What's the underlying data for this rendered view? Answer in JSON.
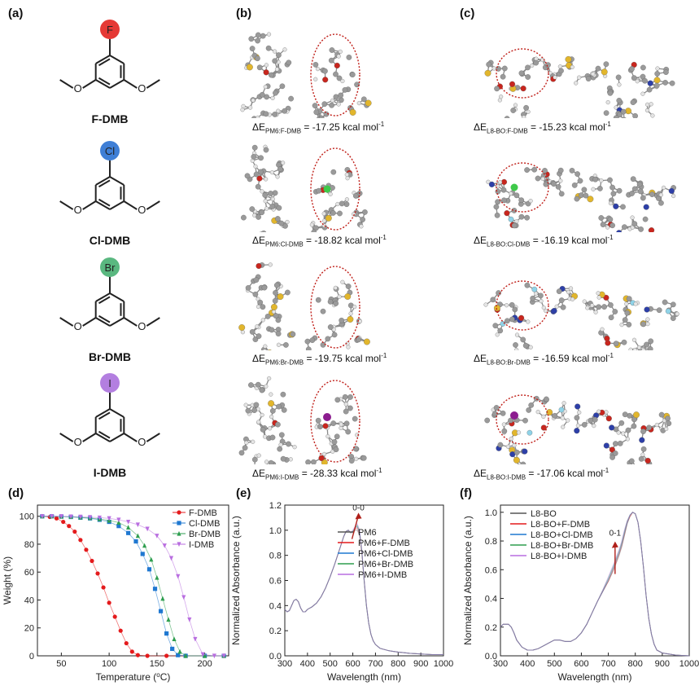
{
  "panel_labels": {
    "a": "(a)",
    "b": "(b)",
    "c": "(c)",
    "d": "(d)",
    "e": "(e)",
    "f": "(f)"
  },
  "molecules": [
    {
      "name": "F-DMB",
      "atom": "F",
      "color": "#e53935"
    },
    {
      "name": "Cl-DMB",
      "atom": "Cl",
      "color": "#3f7fd6"
    },
    {
      "name": "Br-DMB",
      "atom": "Br",
      "color": "#5ab880"
    },
    {
      "name": "I-DMB",
      "atom": "I",
      "color": "#b37fe0"
    }
  ],
  "energies_b": [
    {
      "sub": "PM6:F-DMB",
      "value": "-17.25 kcal mol",
      "unit_sup": "-1"
    },
    {
      "sub": "PM6:Cl-DMB",
      "value": "-18.82 kcal mol",
      "unit_sup": "-1"
    },
    {
      "sub": "PM6:Br-DMB",
      "value": "-19.75 kcal mol",
      "unit_sup": "-1"
    },
    {
      "sub": "PM6:I-DMB",
      "value": "-28.33 kcal mol",
      "unit_sup": "-1"
    }
  ],
  "energies_c": [
    {
      "sub": "L8-BO:F-DMB",
      "value": "-15.23 kcal mol",
      "unit_sup": "-1"
    },
    {
      "sub": "L8-BO:Cl-DMB",
      "value": "-16.19 kcal mol",
      "unit_sup": "-1"
    },
    {
      "sub": "L8-BO:Br-DMB",
      "value": "-16.59 kcal mol",
      "unit_sup": "-1"
    },
    {
      "sub": "L8-BO:I-DMB",
      "value": "-17.06 kcal mol",
      "unit_sup": "-1"
    }
  ],
  "energy_prefix": "ΔE",
  "atom_colors": {
    "carbon": "#9a9a9a",
    "hydrogen": "#e4e4e4",
    "sulfur": "#e2b62c",
    "nitrogen": "#2d3fa8",
    "oxygen": "#c8261e",
    "fluorine": "#8fd3e8",
    "chlorine": "#3fc94a",
    "iodine": "#8c1d8f",
    "ellipse": "#c0201a"
  },
  "chart_data": [
    {
      "type": "scatter",
      "id": "d",
      "xlabel": "Temperature (",
      "xlabel_sup": "o",
      "xlabel_end": "C)",
      "ylabel": "Weight (%)",
      "xlim": [
        25,
        225
      ],
      "ylim": [
        0,
        108
      ],
      "xticks": [
        50,
        100,
        150,
        200
      ],
      "yticks": [
        0,
        20,
        40,
        60,
        80,
        100
      ],
      "legend_position": "top-right",
      "series": [
        {
          "name": "F-DMB",
          "color": "#e41a1c",
          "marker": "circle",
          "x": [
            30,
            38,
            45,
            52,
            58,
            64,
            70,
            76,
            82,
            88,
            94,
            100,
            106,
            112,
            118,
            124,
            130,
            140,
            160,
            180,
            200,
            220
          ],
          "y": [
            100,
            99.5,
            98.5,
            96,
            93,
            89,
            83,
            76,
            68,
            59,
            49,
            38,
            28,
            18,
            9,
            3,
            0.5,
            0,
            0,
            0,
            0,
            0
          ]
        },
        {
          "name": "Cl-DMB",
          "color": "#1f78d1",
          "marker": "square",
          "x": [
            30,
            40,
            50,
            60,
            70,
            80,
            90,
            100,
            110,
            120,
            128,
            135,
            142,
            148,
            154,
            160,
            166,
            172,
            180,
            200,
            220
          ],
          "y": [
            100,
            100,
            99.8,
            99.5,
            99,
            98.5,
            97.5,
            96,
            93,
            88,
            82,
            73,
            62,
            48,
            32,
            16,
            5,
            0.5,
            0,
            0,
            0
          ]
        },
        {
          "name": "Br-DMB",
          "color": "#2e9e4f",
          "marker": "triangle-up",
          "x": [
            30,
            40,
            50,
            60,
            70,
            80,
            90,
            100,
            110,
            120,
            130,
            137,
            144,
            150,
            156,
            162,
            168,
            174,
            180,
            200,
            220
          ],
          "y": [
            100,
            100,
            99.8,
            99.6,
            99.2,
            98.8,
            98,
            97,
            95.5,
            92,
            86,
            79,
            69,
            56,
            41,
            26,
            12,
            3,
            0,
            0,
            0
          ]
        },
        {
          "name": "I-DMB",
          "color": "#b96ee0",
          "marker": "triangle-down",
          "x": [
            30,
            40,
            50,
            60,
            70,
            80,
            90,
            100,
            110,
            120,
            130,
            140,
            150,
            158,
            165,
            172,
            178,
            184,
            190,
            198,
            210,
            220
          ],
          "y": [
            100,
            100,
            100,
            99.8,
            99.6,
            99.3,
            99,
            98.5,
            97.5,
            96,
            94,
            91,
            86,
            79,
            70,
            57,
            42,
            26,
            12,
            1,
            0,
            0
          ]
        }
      ]
    },
    {
      "type": "line",
      "id": "e",
      "xlabel": "Wavelength (nm)",
      "ylabel": "Normalized Absorbance (a.u.)",
      "xlim": [
        300,
        1000
      ],
      "ylim": [
        0,
        1.2
      ],
      "xticks": [
        300,
        400,
        500,
        600,
        700,
        800,
        900,
        1000
      ],
      "yticks": [
        0.0,
        0.2,
        0.4,
        0.6,
        0.8,
        1.0,
        1.2
      ],
      "legend_position": "top-right",
      "annotation": "0-0",
      "x": [
        300,
        310,
        320,
        330,
        340,
        350,
        360,
        370,
        380,
        390,
        400,
        420,
        440,
        460,
        480,
        500,
        520,
        540,
        560,
        570,
        580,
        590,
        600,
        610,
        620,
        630,
        640,
        650,
        660,
        670,
        680,
        690,
        700,
        720,
        740,
        760,
        780,
        800,
        850,
        900,
        950,
        1000
      ],
      "series": [
        {
          "name": "PM6",
          "color": "#555555",
          "values": [
            0.37,
            0.35,
            0.36,
            0.4,
            0.44,
            0.45,
            0.43,
            0.38,
            0.35,
            0.35,
            0.37,
            0.39,
            0.42,
            0.47,
            0.54,
            0.63,
            0.73,
            0.84,
            0.95,
            0.99,
            1.0,
            0.98,
            0.98,
            1.0,
            1.0,
            0.96,
            0.82,
            0.6,
            0.4,
            0.26,
            0.17,
            0.12,
            0.09,
            0.06,
            0.05,
            0.04,
            0.035,
            0.03,
            0.02,
            0.015,
            0.01,
            0.01
          ]
        },
        {
          "name": "PM6+F-DMB",
          "color": "#e41a1c",
          "values": [
            0.37,
            0.35,
            0.36,
            0.4,
            0.44,
            0.45,
            0.43,
            0.38,
            0.35,
            0.35,
            0.37,
            0.39,
            0.42,
            0.47,
            0.54,
            0.63,
            0.73,
            0.84,
            0.95,
            0.99,
            1.0,
            0.98,
            0.99,
            1.01,
            1.02,
            0.97,
            0.82,
            0.6,
            0.4,
            0.26,
            0.17,
            0.12,
            0.09,
            0.06,
            0.05,
            0.04,
            0.035,
            0.03,
            0.02,
            0.015,
            0.01,
            0.01
          ]
        },
        {
          "name": "PM6+Cl-DMB",
          "color": "#1f78d1",
          "values": [
            0.37,
            0.35,
            0.36,
            0.4,
            0.44,
            0.45,
            0.43,
            0.38,
            0.35,
            0.35,
            0.37,
            0.39,
            0.42,
            0.47,
            0.54,
            0.63,
            0.73,
            0.84,
            0.95,
            0.99,
            1.0,
            0.98,
            0.99,
            1.02,
            1.03,
            0.98,
            0.83,
            0.6,
            0.4,
            0.26,
            0.17,
            0.12,
            0.09,
            0.06,
            0.05,
            0.04,
            0.035,
            0.03,
            0.02,
            0.015,
            0.01,
            0.01
          ]
        },
        {
          "name": "PM6+Br-DMB",
          "color": "#2e9e4f",
          "values": [
            0.37,
            0.35,
            0.36,
            0.4,
            0.44,
            0.45,
            0.43,
            0.38,
            0.35,
            0.35,
            0.37,
            0.39,
            0.42,
            0.47,
            0.54,
            0.63,
            0.73,
            0.84,
            0.95,
            0.99,
            1.0,
            0.98,
            0.99,
            1.02,
            1.04,
            0.99,
            0.83,
            0.6,
            0.4,
            0.26,
            0.17,
            0.12,
            0.09,
            0.06,
            0.05,
            0.04,
            0.035,
            0.03,
            0.02,
            0.015,
            0.01,
            0.01
          ]
        },
        {
          "name": "PM6+I-DMB",
          "color": "#b96ee0",
          "values": [
            0.37,
            0.35,
            0.36,
            0.4,
            0.44,
            0.45,
            0.43,
            0.38,
            0.35,
            0.35,
            0.37,
            0.39,
            0.42,
            0.47,
            0.54,
            0.63,
            0.73,
            0.84,
            0.95,
            0.99,
            1.0,
            0.98,
            1.0,
            1.03,
            1.05,
            1.0,
            0.84,
            0.61,
            0.41,
            0.26,
            0.17,
            0.12,
            0.09,
            0.06,
            0.05,
            0.04,
            0.035,
            0.03,
            0.02,
            0.015,
            0.01,
            0.01
          ]
        }
      ]
    },
    {
      "type": "line",
      "id": "f",
      "xlabel": "Wavelength (nm)",
      "ylabel": "Normalized Absorbance (a.u.)",
      "xlim": [
        300,
        1000
      ],
      "ylim": [
        0,
        1.05
      ],
      "xticks": [
        300,
        400,
        500,
        600,
        700,
        800,
        900,
        1000
      ],
      "yticks": [
        0.0,
        0.2,
        0.4,
        0.6,
        0.8,
        1.0
      ],
      "legend_position": "top-left",
      "annotation": "0-1",
      "x": [
        300,
        310,
        320,
        330,
        340,
        350,
        360,
        380,
        400,
        420,
        440,
        460,
        480,
        500,
        520,
        540,
        560,
        580,
        600,
        620,
        640,
        660,
        680,
        700,
        720,
        740,
        750,
        760,
        770,
        780,
        790,
        800,
        810,
        820,
        830,
        840,
        850,
        860,
        870,
        880,
        900,
        950,
        1000
      ],
      "series": [
        {
          "name": "L8-BO",
          "color": "#555555",
          "values": [
            0.2,
            0.22,
            0.22,
            0.22,
            0.2,
            0.16,
            0.11,
            0.06,
            0.04,
            0.04,
            0.05,
            0.07,
            0.09,
            0.11,
            0.11,
            0.1,
            0.1,
            0.12,
            0.16,
            0.22,
            0.3,
            0.38,
            0.45,
            0.52,
            0.6,
            0.7,
            0.76,
            0.84,
            0.92,
            0.97,
            1.0,
            0.99,
            0.93,
            0.8,
            0.62,
            0.42,
            0.26,
            0.15,
            0.08,
            0.04,
            0.02,
            0.005,
            0.0
          ]
        },
        {
          "name": "L8-BO+F-DMB",
          "color": "#e41a1c",
          "values": [
            0.2,
            0.22,
            0.22,
            0.22,
            0.2,
            0.16,
            0.11,
            0.06,
            0.04,
            0.04,
            0.05,
            0.07,
            0.09,
            0.11,
            0.11,
            0.1,
            0.1,
            0.12,
            0.16,
            0.22,
            0.3,
            0.38,
            0.45,
            0.52,
            0.61,
            0.71,
            0.77,
            0.85,
            0.93,
            0.97,
            1.0,
            0.99,
            0.93,
            0.8,
            0.62,
            0.42,
            0.26,
            0.15,
            0.08,
            0.04,
            0.02,
            0.005,
            0.0
          ]
        },
        {
          "name": "L8-BO+Cl-DMB",
          "color": "#1f78d1",
          "values": [
            0.2,
            0.22,
            0.22,
            0.22,
            0.2,
            0.16,
            0.11,
            0.06,
            0.04,
            0.04,
            0.05,
            0.07,
            0.09,
            0.11,
            0.11,
            0.1,
            0.1,
            0.12,
            0.16,
            0.22,
            0.3,
            0.38,
            0.45,
            0.53,
            0.62,
            0.72,
            0.78,
            0.86,
            0.93,
            0.98,
            1.0,
            0.99,
            0.93,
            0.8,
            0.62,
            0.42,
            0.26,
            0.15,
            0.08,
            0.04,
            0.02,
            0.005,
            0.0
          ]
        },
        {
          "name": "L8-BO+Br-DMB",
          "color": "#2e9e4f",
          "values": [
            0.2,
            0.22,
            0.22,
            0.22,
            0.2,
            0.16,
            0.11,
            0.06,
            0.04,
            0.04,
            0.05,
            0.07,
            0.09,
            0.11,
            0.11,
            0.1,
            0.1,
            0.12,
            0.16,
            0.22,
            0.3,
            0.38,
            0.46,
            0.54,
            0.63,
            0.73,
            0.79,
            0.87,
            0.94,
            0.98,
            1.0,
            0.99,
            0.93,
            0.8,
            0.62,
            0.42,
            0.26,
            0.15,
            0.08,
            0.04,
            0.02,
            0.005,
            0.0
          ]
        },
        {
          "name": "L8-BO+I-DMB",
          "color": "#b96ee0",
          "values": [
            0.2,
            0.22,
            0.22,
            0.22,
            0.2,
            0.16,
            0.11,
            0.06,
            0.04,
            0.04,
            0.05,
            0.07,
            0.09,
            0.11,
            0.11,
            0.1,
            0.1,
            0.12,
            0.16,
            0.22,
            0.3,
            0.38,
            0.46,
            0.55,
            0.64,
            0.74,
            0.8,
            0.88,
            0.94,
            0.98,
            1.0,
            0.99,
            0.93,
            0.8,
            0.62,
            0.42,
            0.26,
            0.15,
            0.08,
            0.04,
            0.02,
            0.005,
            0.0
          ]
        }
      ]
    }
  ]
}
